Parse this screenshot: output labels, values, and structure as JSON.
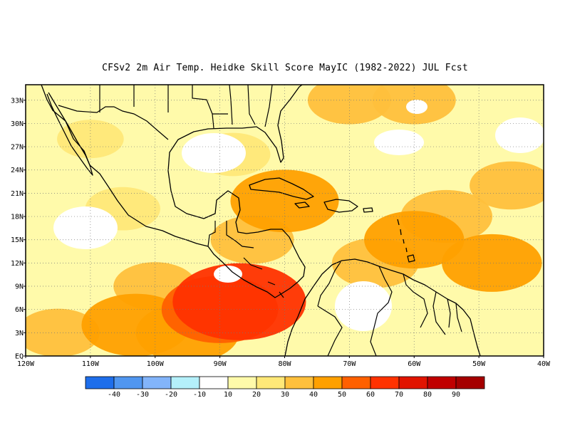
{
  "title": "CFSv2  2m Air Temp. Heidke Skill Score MayIC (1982-2022) JUL Fcst",
  "map": {
    "lon_range": [
      -120,
      -40
    ],
    "lat_range": [
      0,
      35
    ],
    "lat_ticks": [
      {
        "value": 33,
        "label": "33N"
      },
      {
        "value": 30,
        "label": "30N"
      },
      {
        "value": 27,
        "label": "27N"
      },
      {
        "value": 24,
        "label": "24N"
      },
      {
        "value": 21,
        "label": "21N"
      },
      {
        "value": 18,
        "label": "18N"
      },
      {
        "value": 15,
        "label": "15N"
      },
      {
        "value": 12,
        "label": "12N"
      },
      {
        "value": 9,
        "label": "9N"
      },
      {
        "value": 6,
        "label": "6N"
      },
      {
        "value": 3,
        "label": "3N"
      },
      {
        "value": 0,
        "label": "EQ"
      }
    ],
    "lon_ticks": [
      {
        "value": -120,
        "label": "120W"
      },
      {
        "value": -110,
        "label": "110W"
      },
      {
        "value": -100,
        "label": "100W"
      },
      {
        "value": -90,
        "label": "90W"
      },
      {
        "value": -80,
        "label": "80W"
      },
      {
        "value": -70,
        "label": "70W"
      },
      {
        "value": -60,
        "label": "60W"
      },
      {
        "value": -50,
        "label": "50W"
      },
      {
        "value": -40,
        "label": "40W"
      }
    ],
    "skill_field": [
      {
        "lon": -103,
        "lat": 4,
        "value": 45
      },
      {
        "lon": -90,
        "lat": 6,
        "value": 50
      },
      {
        "lon": -87,
        "lat": 7,
        "value": 60
      },
      {
        "lon": -95,
        "lat": 3,
        "value": 42
      },
      {
        "lon": -80,
        "lat": 20,
        "value": 45
      },
      {
        "lon": -60,
        "lat": 15,
        "value": 40
      },
      {
        "lon": -48,
        "lat": 12,
        "value": 40
      },
      {
        "lon": -55,
        "lat": 18,
        "value": 35
      },
      {
        "lon": -66,
        "lat": 12,
        "value": 32
      },
      {
        "lon": -70,
        "lat": 33,
        "value": 30
      },
      {
        "lon": -60,
        "lat": 33,
        "value": 30
      },
      {
        "lon": -85,
        "lat": 15,
        "value": 30
      },
      {
        "lon": -100,
        "lat": 9,
        "value": 30
      },
      {
        "lon": -115,
        "lat": 3,
        "value": 30
      },
      {
        "lon": -105,
        "lat": 19,
        "value": 25
      },
      {
        "lon": -88,
        "lat": 26,
        "value": 25
      },
      {
        "lon": -45,
        "lat": 22,
        "value": 30
      },
      {
        "lon": -110,
        "lat": 28,
        "value": 20
      }
    ]
  },
  "colorbar": {
    "colors": [
      "#1e6eeb",
      "#5096f0",
      "#82b4fa",
      "#b4f0fa",
      "#ffffff",
      "#fffaaa",
      "#ffe878",
      "#ffc03c",
      "#ffa000",
      "#ff6000",
      "#ff3200",
      "#e11400",
      "#c00000",
      "#a50000"
    ],
    "labels": [
      "-40",
      "-30",
      "-20",
      "-10",
      "10",
      "20",
      "30",
      "40",
      "50",
      "60",
      "70",
      "80",
      "90"
    ]
  }
}
